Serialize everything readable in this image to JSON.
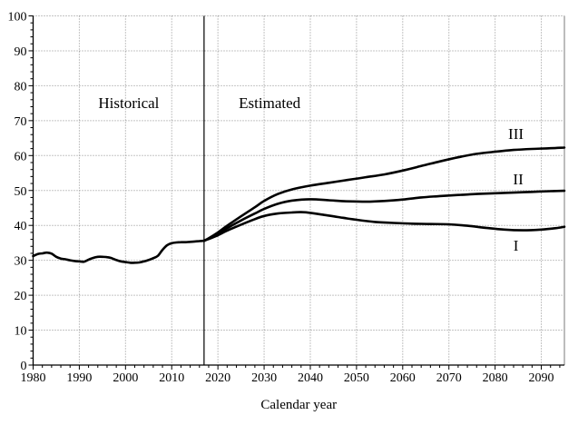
{
  "figure": {
    "background": "#ffffff",
    "line_color": "#000000",
    "grid_color": "#8a8a8a",
    "border_color": "#7a7a7a",
    "grid_style": "dotted"
  },
  "chart_data": {
    "type": "line",
    "title": "",
    "xlabel": "Calendar year",
    "ylabel": "",
    "xlim": [
      1980,
      2095
    ],
    "ylim": [
      0,
      100
    ],
    "x_ticks": [
      1980,
      1990,
      2000,
      2010,
      2020,
      2030,
      2040,
      2050,
      2060,
      2070,
      2080,
      2090
    ],
    "y_ticks": [
      0,
      10,
      20,
      30,
      40,
      50,
      60,
      70,
      80,
      90,
      100
    ],
    "x_minor_step": 2,
    "y_minor_step": 2,
    "grid": "dotted, at major ticks only",
    "legend_position": "none (direct line labels)",
    "divider_year": 2017,
    "series": [
      {
        "name": "Historical",
        "points": [
          [
            1980,
            31.2
          ],
          [
            1981,
            31.8
          ],
          [
            1982,
            32.0
          ],
          [
            1983,
            32.2
          ],
          [
            1984,
            31.9
          ],
          [
            1985,
            31.0
          ],
          [
            1986,
            30.5
          ],
          [
            1987,
            30.3
          ],
          [
            1988,
            30.0
          ],
          [
            1989,
            29.8
          ],
          [
            1990,
            29.7
          ],
          [
            1991,
            29.6
          ],
          [
            1992,
            30.2
          ],
          [
            1993,
            30.7
          ],
          [
            1994,
            31.0
          ],
          [
            1995,
            31.0
          ],
          [
            1996,
            30.9
          ],
          [
            1997,
            30.6
          ],
          [
            1998,
            30.1
          ],
          [
            1999,
            29.7
          ],
          [
            2000,
            29.5
          ],
          [
            2001,
            29.3
          ],
          [
            2002,
            29.3
          ],
          [
            2003,
            29.4
          ],
          [
            2004,
            29.7
          ],
          [
            2005,
            30.1
          ],
          [
            2006,
            30.6
          ],
          [
            2007,
            31.3
          ],
          [
            2008,
            33.0
          ],
          [
            2009,
            34.3
          ],
          [
            2010,
            34.9
          ],
          [
            2011,
            35.1
          ],
          [
            2012,
            35.2
          ],
          [
            2013,
            35.2
          ],
          [
            2014,
            35.3
          ],
          [
            2015,
            35.4
          ],
          [
            2016,
            35.5
          ],
          [
            2017,
            35.6
          ]
        ]
      },
      {
        "name": "Alternative III",
        "points": [
          [
            2017,
            35.6
          ],
          [
            2018,
            36.3
          ],
          [
            2020,
            38.0
          ],
          [
            2022,
            39.9
          ],
          [
            2025,
            42.6
          ],
          [
            2028,
            45.2
          ],
          [
            2030,
            47.0
          ],
          [
            2033,
            49.0
          ],
          [
            2036,
            50.3
          ],
          [
            2040,
            51.4
          ],
          [
            2044,
            52.2
          ],
          [
            2048,
            53.0
          ],
          [
            2052,
            53.8
          ],
          [
            2056,
            54.6
          ],
          [
            2060,
            55.7
          ],
          [
            2064,
            57.0
          ],
          [
            2068,
            58.3
          ],
          [
            2072,
            59.5
          ],
          [
            2076,
            60.5
          ],
          [
            2080,
            61.1
          ],
          [
            2084,
            61.6
          ],
          [
            2088,
            61.9
          ],
          [
            2092,
            62.1
          ],
          [
            2095,
            62.3
          ]
        ]
      },
      {
        "name": "Alternative II",
        "points": [
          [
            2017,
            35.6
          ],
          [
            2018,
            36.2
          ],
          [
            2020,
            37.6
          ],
          [
            2022,
            39.2
          ],
          [
            2025,
            41.4
          ],
          [
            2028,
            43.4
          ],
          [
            2030,
            44.7
          ],
          [
            2033,
            46.2
          ],
          [
            2036,
            47.1
          ],
          [
            2040,
            47.5
          ],
          [
            2044,
            47.2
          ],
          [
            2048,
            46.9
          ],
          [
            2052,
            46.8
          ],
          [
            2056,
            47.0
          ],
          [
            2060,
            47.4
          ],
          [
            2064,
            48.0
          ],
          [
            2068,
            48.4
          ],
          [
            2072,
            48.7
          ],
          [
            2076,
            49.0
          ],
          [
            2080,
            49.2
          ],
          [
            2084,
            49.4
          ],
          [
            2088,
            49.6
          ],
          [
            2092,
            49.8
          ],
          [
            2095,
            49.9
          ]
        ]
      },
      {
        "name": "Alternative I",
        "points": [
          [
            2017,
            35.6
          ],
          [
            2018,
            36.1
          ],
          [
            2020,
            37.2
          ],
          [
            2022,
            38.5
          ],
          [
            2025,
            40.2
          ],
          [
            2028,
            41.8
          ],
          [
            2030,
            42.7
          ],
          [
            2033,
            43.4
          ],
          [
            2036,
            43.7
          ],
          [
            2038,
            43.8
          ],
          [
            2040,
            43.6
          ],
          [
            2043,
            43.0
          ],
          [
            2046,
            42.4
          ],
          [
            2050,
            41.6
          ],
          [
            2054,
            41.0
          ],
          [
            2058,
            40.7
          ],
          [
            2062,
            40.5
          ],
          [
            2066,
            40.4
          ],
          [
            2070,
            40.3
          ],
          [
            2074,
            39.9
          ],
          [
            2078,
            39.3
          ],
          [
            2082,
            38.8
          ],
          [
            2086,
            38.6
          ],
          [
            2090,
            38.8
          ],
          [
            2093,
            39.2
          ],
          [
            2095,
            39.6
          ]
        ]
      }
    ],
    "annotations": [
      {
        "text": "Historical",
        "x": 2000.7,
        "y": 75.2,
        "size": 17
      },
      {
        "text": "Estimated",
        "x": 2031.2,
        "y": 75.2,
        "size": 17
      },
      {
        "text": "III",
        "x": 2084.5,
        "y": 66.3,
        "size": 17
      },
      {
        "text": "II",
        "x": 2085.0,
        "y": 53.3,
        "size": 17
      },
      {
        "text": "I",
        "x": 2084.5,
        "y": 34.3,
        "size": 17
      }
    ]
  }
}
